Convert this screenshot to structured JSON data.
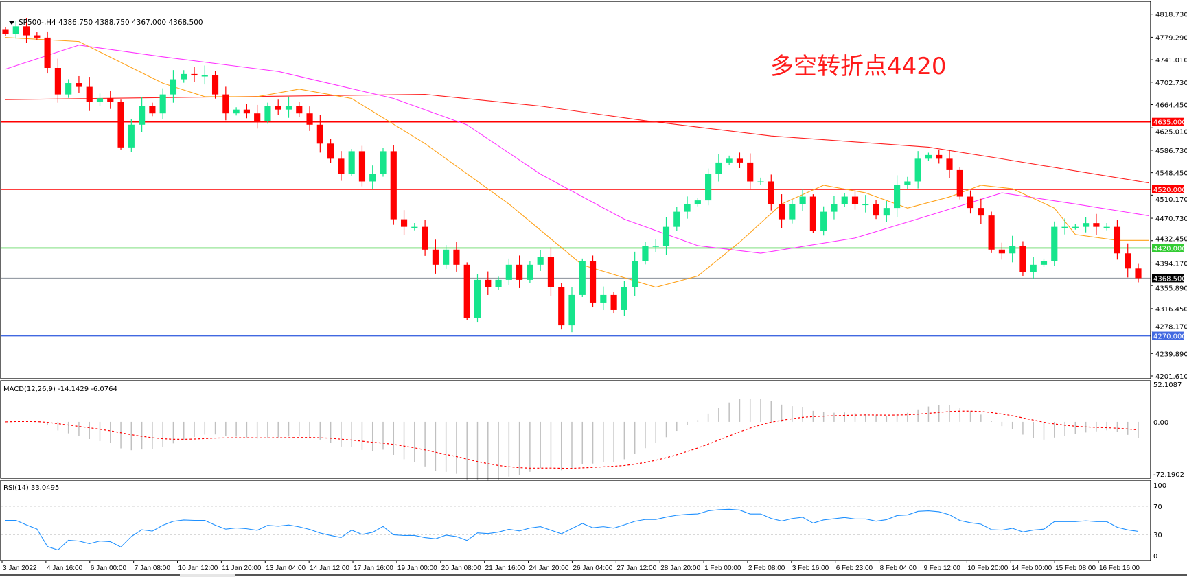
{
  "header": {
    "symbol": "SP500-,H4",
    "open": "4386.750",
    "high": "4388.750",
    "low": "4367.000",
    "close": "4368.500",
    "menu_icon": "triangle-down-icon"
  },
  "annotation": "多空转折点4420",
  "colors": {
    "bull": "#16e58c",
    "bear": "#ff0000",
    "ma_fast": "#ffa21a",
    "ma_mid": "#ff33ff",
    "ma_slow": "#ff2020",
    "macd_hist": "#c0c0c0",
    "macd_signal": "#ff0000",
    "rsi": "#1e90ff",
    "level_red": "#ff0000",
    "level_green": "#33cc33",
    "level_blue": "#4169e1",
    "last_price": "#8a9099"
  },
  "price_axis": {
    "ticks": [
      "4818.730",
      "4779.290",
      "4741.010",
      "4702.730",
      "4664.450",
      "4625.010",
      "4586.730",
      "4548.450",
      "4510.170",
      "4470.730",
      "4432.450",
      "4394.170",
      "4355.890",
      "4316.450",
      "4278.170",
      "4239.890",
      "4201.610"
    ],
    "range": [
      4201.61,
      4818.73
    ]
  },
  "levels": [
    {
      "price": 4635,
      "label": "4635.000",
      "color": "#ff0000"
    },
    {
      "price": 4520,
      "label": "4520.000",
      "color": "#ff0000"
    },
    {
      "price": 4420,
      "label": "4420.000",
      "color": "#33cc33"
    },
    {
      "price": 4368.5,
      "label": "4368.500",
      "color": "#8a9099",
      "tag_color": "#000000"
    },
    {
      "price": 4270,
      "label": "4270.000",
      "color": "#4169e1"
    }
  ],
  "chart_data": {
    "type": "candlestick",
    "closes": [
      4785.2,
      4798.1,
      4782.6,
      4778.7,
      4727.1,
      4681.9,
      4701.3,
      4694.8,
      4669.0,
      4675.4,
      4669.0,
      4591.5,
      4630.2,
      4662.5,
      4649.6,
      4681.9,
      4707.7,
      4716.7,
      4714.2,
      4714.2,
      4681.9,
      4649.6,
      4656.1,
      4649.6,
      4636.7,
      4662.5,
      4656.1,
      4662.5,
      4649.6,
      4630.2,
      4598.0,
      4572.2,
      4546.3,
      4585.0,
      4533.4,
      4546.3,
      4585.0,
      4468.9,
      4456.0,
      4456.0,
      4417.2,
      4391.4,
      4417.2,
      4391.4,
      4301.1,
      4365.6,
      4352.7,
      4365.6,
      4391.4,
      4365.6,
      4391.4,
      4404.3,
      4352.7,
      4288.1,
      4339.8,
      4397.9,
      4326.9,
      4339.8,
      4314.0,
      4352.7,
      4397.9,
      4423.7,
      4423.7,
      4456.0,
      4481.8,
      4494.7,
      4501.1,
      4546.3,
      4565.7,
      4572.2,
      4565.7,
      4533.4,
      4533.4,
      4494.7,
      4468.9,
      4494.7,
      4507.6,
      4449.5,
      4481.8,
      4494.7,
      4507.6,
      4494.7,
      4494.7,
      4475.3,
      4488.2,
      4527.0,
      4533.4,
      4572.2,
      4578.6,
      4572.2,
      4552.8,
      4507.6,
      4488.2,
      4475.3,
      4417.2,
      4410.8,
      4423.7,
      4378.5,
      4391.4,
      4397.9,
      4456.0,
      4456.0,
      4456.0,
      4462.4,
      4456.0,
      4456.0,
      4410.8,
      4385.0,
      4368.5
    ],
    "ma_fast": [
      [
        0,
        4779
      ],
      [
        7,
        4772
      ],
      [
        15,
        4701
      ],
      [
        19,
        4678
      ],
      [
        24,
        4678
      ],
      [
        28,
        4691
      ],
      [
        33,
        4675
      ],
      [
        40,
        4598
      ],
      [
        48,
        4495
      ],
      [
        55,
        4391
      ],
      [
        62,
        4353
      ],
      [
        66,
        4372
      ],
      [
        70,
        4430
      ],
      [
        74,
        4495
      ],
      [
        78,
        4527
      ],
      [
        82,
        4514
      ],
      [
        86,
        4488
      ],
      [
        90,
        4507
      ],
      [
        93,
        4527
      ],
      [
        96,
        4521
      ],
      [
        100,
        4488
      ],
      [
        102,
        4443
      ],
      [
        106,
        4433
      ],
      [
        109,
        4433
      ]
    ],
    "ma_mid": [
      [
        0,
        4725
      ],
      [
        7,
        4766
      ],
      [
        15,
        4746
      ],
      [
        26,
        4721
      ],
      [
        37,
        4675
      ],
      [
        44,
        4630
      ],
      [
        51,
        4546
      ],
      [
        59,
        4469
      ],
      [
        66,
        4424
      ],
      [
        72,
        4411
      ],
      [
        81,
        4437
      ],
      [
        88,
        4475
      ],
      [
        95,
        4514
      ],
      [
        102,
        4495
      ],
      [
        109,
        4475
      ]
    ],
    "ma_slow": [
      [
        0,
        4673
      ],
      [
        40,
        4682
      ],
      [
        51,
        4662
      ],
      [
        61,
        4637
      ],
      [
        73,
        4611
      ],
      [
        88,
        4592
      ],
      [
        95,
        4572
      ],
      [
        109,
        4531
      ]
    ],
    "time_labels": [
      "3 Jan 2022",
      "4 Jan 16:00",
      "6 Jan 00:00",
      "7 Jan 08:00",
      "10 Jan 12:00",
      "11 Jan 20:00",
      "13 Jan 04:00",
      "14 Jan 12:00",
      "17 Jan 16:00",
      "19 Jan 00:00",
      "20 Jan 08:00",
      "21 Jan 16:00",
      "24 Jan 20:00",
      "26 Jan 04:00",
      "27 Jan 12:00",
      "28 Jan 20:00",
      "1 Feb 00:00",
      "2 Feb 08:00",
      "3 Feb 16:00",
      "6 Feb 23:00",
      "8 Feb 04:00",
      "9 Feb 12:00",
      "10 Feb 20:00",
      "14 Feb 00:00",
      "15 Feb 08:00",
      "16 Feb 16:00"
    ]
  },
  "macd": {
    "label": "MACD(12,26,9) -14.1429 -6.0764",
    "ticks": [
      "52.1087",
      "0.00",
      "-72.1902"
    ],
    "range": [
      -72.1902,
      52.1087
    ]
  },
  "rsi": {
    "label": "RSI(14) 33.0495",
    "ticks": [
      "100",
      "70",
      "30",
      "0"
    ],
    "levels": [
      70,
      30
    ]
  }
}
